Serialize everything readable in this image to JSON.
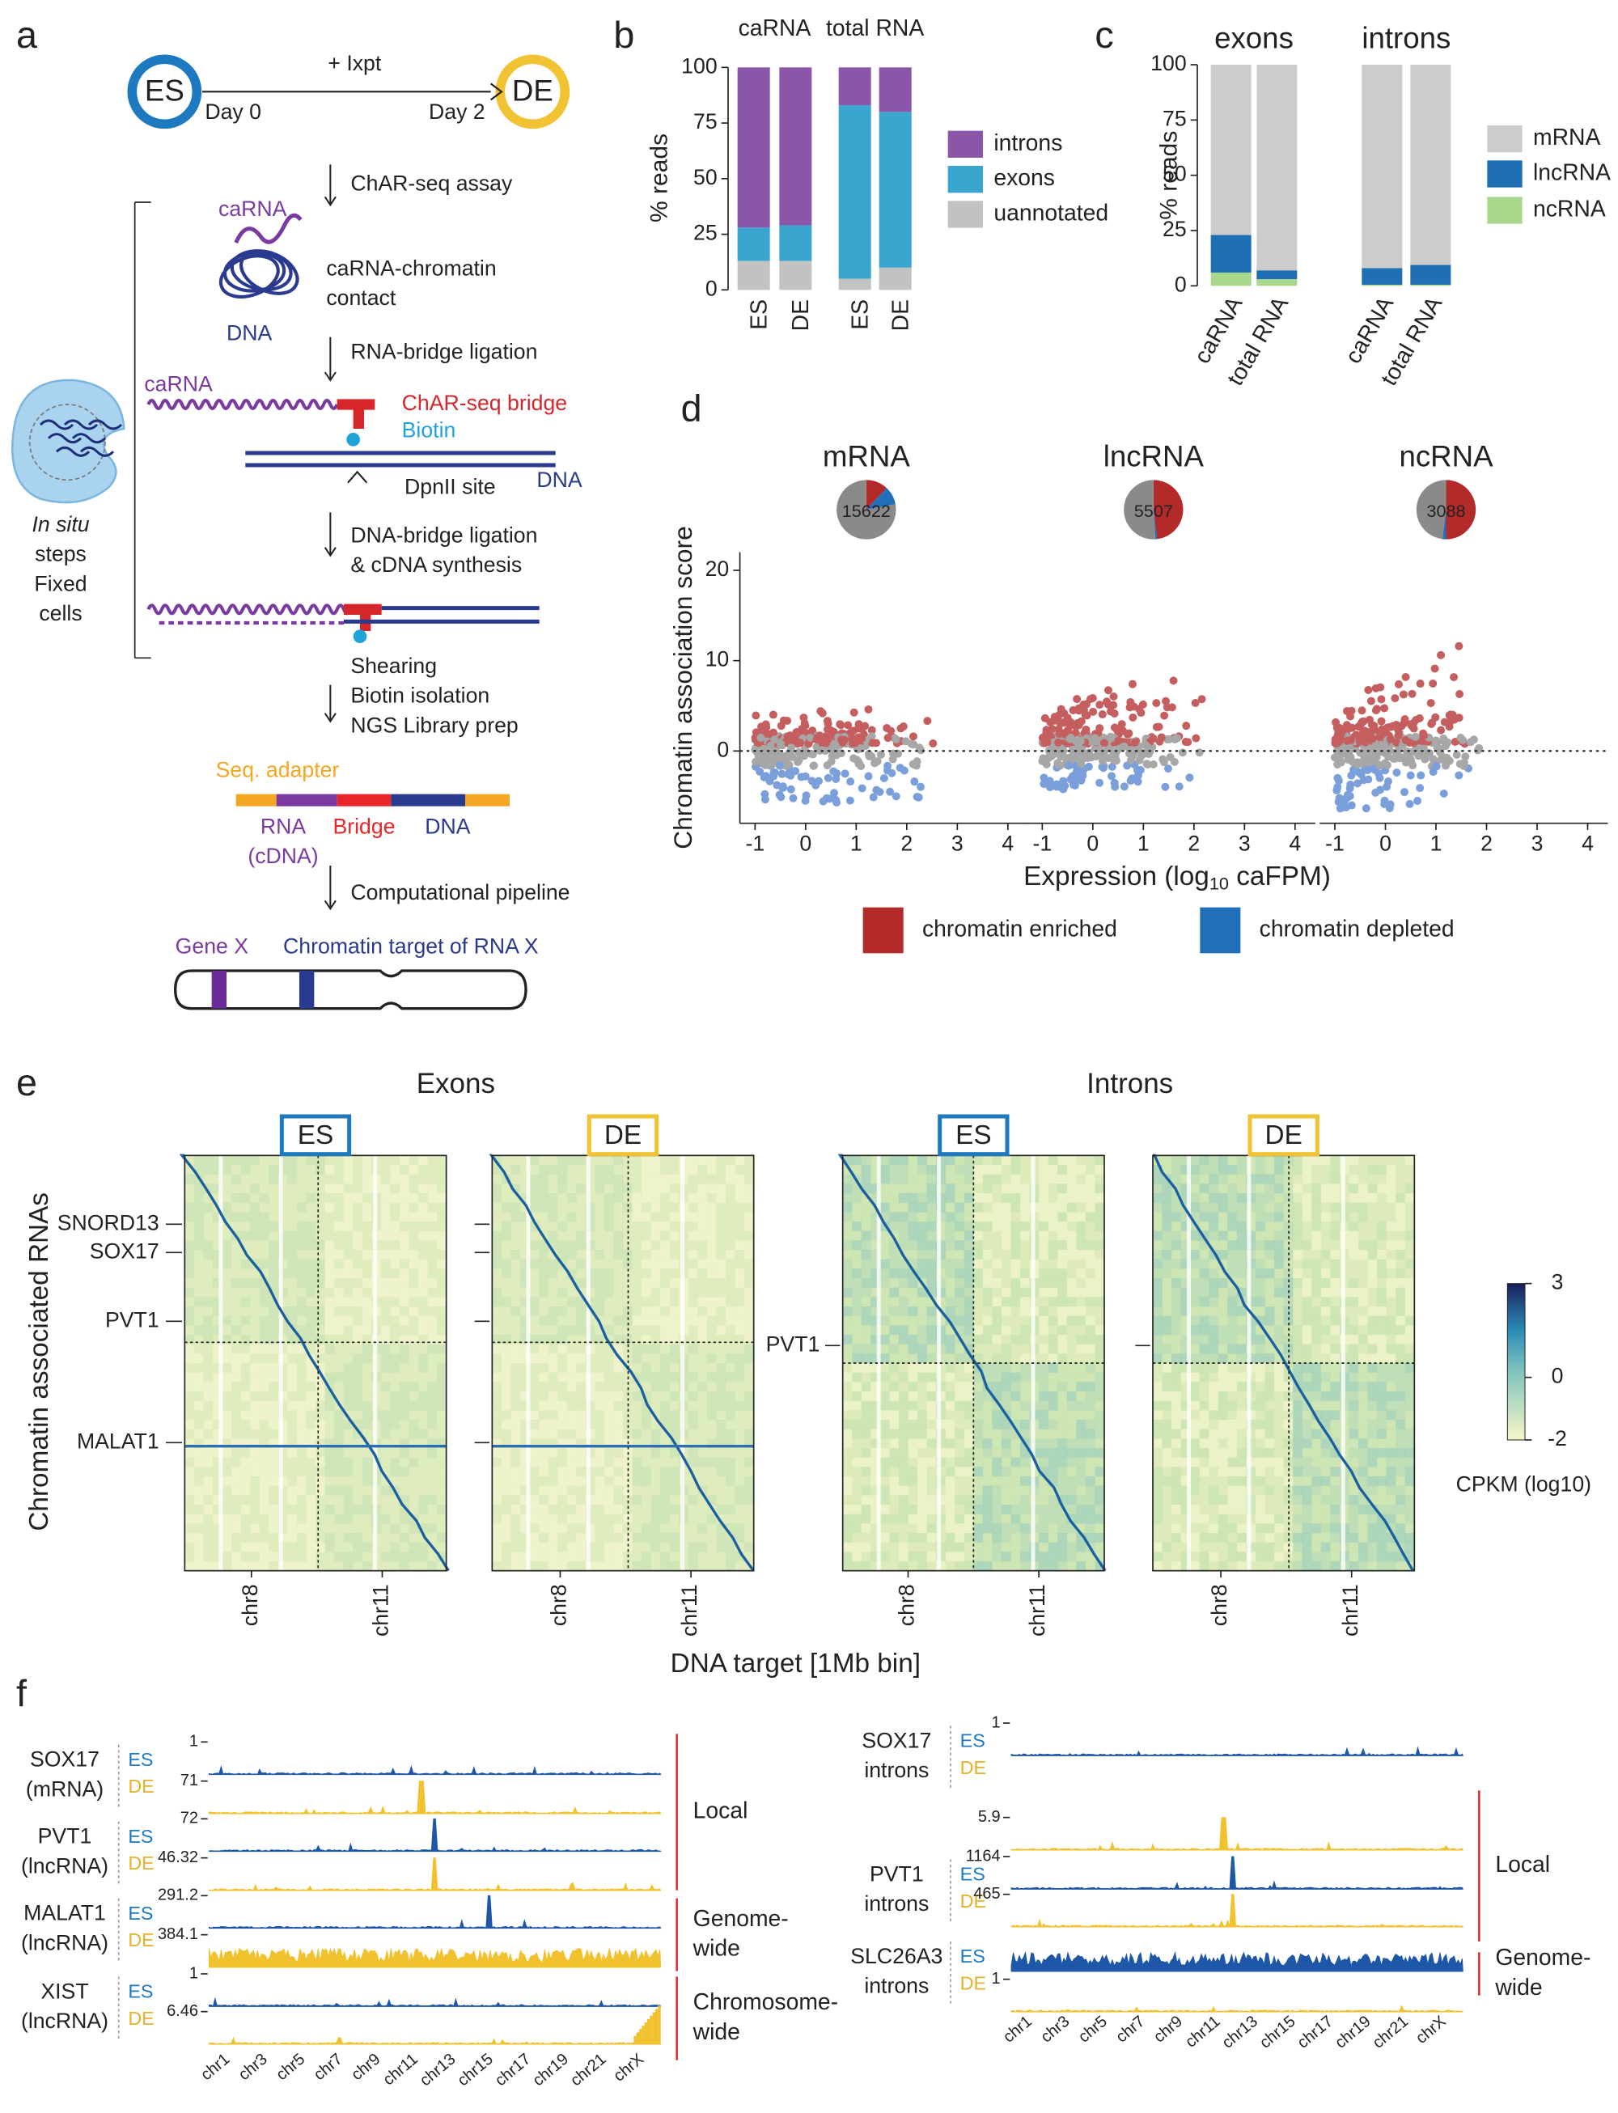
{
  "panel_labels": [
    "a",
    "b",
    "c",
    "d",
    "e",
    "f"
  ],
  "panel_a": {
    "texts": [
      "ES",
      "DE",
      "+ Ixpt",
      "Day 0",
      "Day 2",
      "ChAR-seq assay",
      "caRNA",
      "caRNA-chromatin",
      "contact",
      "DNA",
      "RNA-bridge ligation",
      "caRNA",
      "ChAR-seq bridge",
      "Biotin",
      "DpnII site",
      "DNA",
      "DNA-bridge ligation",
      "& cDNA synthesis",
      "Shearing",
      "Biotin isolation",
      "NGS Library prep",
      "Seq. adapter",
      "RNA",
      "(cDNA)",
      "Bridge",
      "DNA",
      "Computational pipeline",
      "Gene X",
      "Chromatin target of RNA X",
      "In situ",
      "steps",
      "Fixed",
      "cells"
    ]
  },
  "chart_data": [
    {
      "type": "stacked_bar",
      "ylabel": "% reads",
      "groups": [
        "caRNA",
        "total RNA"
      ],
      "categories": [
        "ES",
        "DE",
        "ES",
        "DE"
      ],
      "series": [
        {
          "name": "uannotated",
          "color": "#c2c2c2",
          "values": [
            13,
            13,
            5,
            10
          ]
        },
        {
          "name": "exons",
          "color": "#3aa6cf",
          "values": [
            15,
            16,
            78,
            70
          ]
        },
        {
          "name": "introns",
          "color": "#8b55a8",
          "values": [
            72,
            71,
            17,
            20
          ]
        }
      ],
      "ylim": [
        0,
        100
      ],
      "yticks": [
        0,
        25,
        50,
        75,
        100
      ]
    },
    {
      "type": "stacked_bar",
      "ylabel": "% reads",
      "groups": [
        "exons",
        "introns"
      ],
      "categories": [
        "caRNA",
        "total RNA",
        "caRNA",
        "total RNA"
      ],
      "series": [
        {
          "name": "ncRNA",
          "color": "#a9d88c",
          "values": [
            6,
            3,
            0.5,
            0.5
          ]
        },
        {
          "name": "lncRNA",
          "color": "#1f6fb5",
          "values": [
            17,
            4,
            7.5,
            9
          ]
        },
        {
          "name": "mRNA",
          "color": "#cccccc",
          "values": [
            77,
            93,
            92,
            90.5
          ]
        }
      ],
      "ylim": [
        0,
        100
      ],
      "yticks": [
        0,
        25,
        50,
        75,
        100
      ]
    },
    {
      "type": "scatter_pie",
      "ylabel": "Chromatin association score",
      "xlabel": [
        "Expression (log",
        "10",
        " caFPM)"
      ],
      "titles": [
        "mRNA",
        "lncRNA",
        "ncRNA"
      ],
      "counts": [
        15622,
        5507,
        3088
      ],
      "series": [
        {
          "name": "chromatin enriched",
          "color": "#b22a2a",
          "values": [
            12,
            48,
            50
          ]
        },
        {
          "name": "chromatin depleted",
          "color": "#1f70b8",
          "values": [
            10,
            1,
            2
          ]
        },
        {
          "color": "#8a8a8a",
          "values": [
            78,
            51,
            48
          ]
        }
      ],
      "xlim": [
        -1.3,
        4.4
      ],
      "xticks": [
        -1,
        0,
        1,
        2,
        3,
        4
      ],
      "ylim": [
        -8,
        22
      ],
      "yticks": [
        0,
        10,
        20
      ]
    }
  ],
  "panel_e": {
    "column_groups": [
      "Exons",
      "Introns"
    ],
    "samples": [
      "ES",
      "DE",
      "ES",
      "DE"
    ],
    "row_labels": [
      "SNORD13",
      "SOX17",
      "PVT1",
      "MALAT1",
      "PVT1"
    ],
    "x_labels": [
      "chr8",
      "chr11"
    ],
    "xlabel": "DNA target [1Mb bin]",
    "ylabel": "Chromatin associated RNAs",
    "colorbar": {
      "lim": [
        -2,
        3
      ],
      "ticks": [
        3,
        0,
        -2
      ],
      "label": "CPKM (log10)"
    }
  },
  "panel_f": {
    "samples": [
      "ES",
      "DE"
    ],
    "chromosomes": [
      "chr1",
      "chr3",
      "chr5",
      "chr7",
      "chr9",
      "chr11",
      "chr13",
      "chr15",
      "chr17",
      "chr19",
      "chr21",
      "chrX"
    ],
    "left": {
      "tracks": [
        {
          "gene": "SOX17",
          "type": "(mRNA)",
          "scales": [
            1,
            71
          ]
        },
        {
          "gene": "PVT1",
          "type": "(lncRNA)",
          "scales": [
            72,
            46.32
          ]
        },
        {
          "gene": "MALAT1",
          "type": "(lncRNA)",
          "scales": [
            291.2,
            384.1
          ]
        },
        {
          "gene": "XIST",
          "type": "(lncRNA)",
          "scales": [
            1,
            6.46
          ]
        }
      ],
      "groups": [
        [
          "Local"
        ],
        [
          "Genome-",
          "wide"
        ],
        [
          "Chromosome-",
          "wide"
        ]
      ]
    },
    "right": {
      "tracks": [
        {
          "gene": "SOX17",
          "type": "introns",
          "scales": [
            1,
            5.9
          ]
        },
        {
          "gene": "PVT1",
          "type": "introns",
          "scales": [
            1164,
            465
          ]
        },
        {
          "gene": "SLC26A3",
          "type": "introns",
          "scales": [
            1
          ]
        }
      ],
      "groups": [
        [
          "Local"
        ],
        [
          "Genome-",
          "wide"
        ]
      ]
    }
  }
}
